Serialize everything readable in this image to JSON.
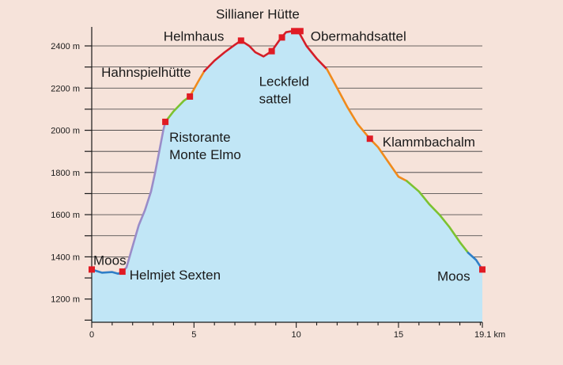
{
  "chart_data": {
    "type": "area",
    "title": "",
    "xlabel": "",
    "ylabel": "",
    "xunit": "km",
    "yunit": "m",
    "xlim": [
      0,
      19.1
    ],
    "ylim": [
      1090,
      2490
    ],
    "x_ticks": [
      {
        "value": 0,
        "label": "0"
      },
      {
        "value": 5,
        "label": "5"
      },
      {
        "value": 10,
        "label": "10"
      },
      {
        "value": 15,
        "label": "15"
      },
      {
        "value": 19.1,
        "label": "19.1 km"
      }
    ],
    "y_ticks": [
      {
        "value": 1200,
        "label": "1200 m"
      },
      {
        "value": 1400,
        "label": "1400 m"
      },
      {
        "value": 1600,
        "label": "1600 m"
      },
      {
        "value": 1800,
        "label": "1800 m"
      },
      {
        "value": 2000,
        "label": "2000 m"
      },
      {
        "value": 2200,
        "label": "2200 m"
      },
      {
        "value": 2400,
        "label": "2400 m"
      }
    ],
    "grid": true,
    "fill_color": "#c1e6f6",
    "segments": [
      {
        "color": "#2f7fc8",
        "points": [
          [
            0,
            1340
          ],
          [
            0.5,
            1325
          ],
          [
            1.0,
            1328
          ],
          [
            1.3,
            1320
          ],
          [
            1.5,
            1330
          ]
        ]
      },
      {
        "color": "#9a8cc8",
        "points": [
          [
            1.5,
            1330
          ],
          [
            1.7,
            1350
          ],
          [
            2.0,
            1450
          ],
          [
            2.3,
            1550
          ],
          [
            2.6,
            1620
          ],
          [
            2.9,
            1710
          ],
          [
            3.1,
            1800
          ],
          [
            3.3,
            1900
          ],
          [
            3.5,
            2000
          ],
          [
            3.6,
            2040
          ]
        ]
      },
      {
        "color": "#7cc230",
        "points": [
          [
            3.6,
            2040
          ],
          [
            4.0,
            2090
          ],
          [
            4.5,
            2140
          ],
          [
            4.8,
            2160
          ]
        ]
      },
      {
        "color": "#f08a1c",
        "points": [
          [
            4.8,
            2160
          ],
          [
            5.2,
            2230
          ],
          [
            5.5,
            2280
          ]
        ]
      },
      {
        "color": "#d41e28",
        "points": [
          [
            5.5,
            2280
          ],
          [
            6.0,
            2330
          ],
          [
            6.5,
            2370
          ],
          [
            7.0,
            2405
          ],
          [
            7.3,
            2425
          ],
          [
            7.7,
            2400
          ],
          [
            8.0,
            2370
          ],
          [
            8.4,
            2350
          ],
          [
            8.8,
            2375
          ],
          [
            9.2,
            2430
          ],
          [
            9.5,
            2465
          ],
          [
            9.8,
            2470
          ],
          [
            10.1,
            2470
          ],
          [
            10.5,
            2400
          ],
          [
            11.0,
            2340
          ],
          [
            11.5,
            2290
          ]
        ]
      },
      {
        "color": "#f08a1c",
        "points": [
          [
            11.5,
            2290
          ],
          [
            12.0,
            2200
          ],
          [
            12.5,
            2110
          ],
          [
            13.0,
            2030
          ],
          [
            13.6,
            1960
          ],
          [
            14.0,
            1920
          ],
          [
            14.5,
            1850
          ],
          [
            15.0,
            1780
          ],
          [
            15.4,
            1760
          ]
        ]
      },
      {
        "color": "#7cc230",
        "points": [
          [
            15.4,
            1760
          ],
          [
            16.0,
            1710
          ],
          [
            16.5,
            1650
          ],
          [
            17.0,
            1600
          ],
          [
            17.5,
            1540
          ],
          [
            18.0,
            1470
          ],
          [
            18.4,
            1420
          ]
        ]
      },
      {
        "color": "#2f7fc8",
        "points": [
          [
            18.4,
            1420
          ],
          [
            18.8,
            1385
          ],
          [
            19.1,
            1340
          ]
        ]
      }
    ],
    "markers": [
      {
        "x": 0,
        "y": 1340,
        "label": "Moos"
      },
      {
        "x": 1.5,
        "y": 1330,
        "label": "Helmjet Sexten"
      },
      {
        "x": 3.6,
        "y": 2040,
        "label": "Ristorante\nMonte Elmo"
      },
      {
        "x": 4.8,
        "y": 2160,
        "label": "Hahnspielhütte"
      },
      {
        "x": 7.3,
        "y": 2425,
        "label": "Helmhaus"
      },
      {
        "x": 8.8,
        "y": 2375,
        "label": "Leckfeld\nsattel"
      },
      {
        "x": 9.3,
        "y": 2440,
        "label": ""
      },
      {
        "x": 9.9,
        "y": 2470,
        "label": "Sillianer Hütte"
      },
      {
        "x": 10.2,
        "y": 2470,
        "label": "Obermahdsattel"
      },
      {
        "x": 13.6,
        "y": 1960,
        "label": "Klammbachalm"
      },
      {
        "x": 19.1,
        "y": 1340,
        "label": "Moos"
      }
    ],
    "marker_color": "#e01b24"
  }
}
